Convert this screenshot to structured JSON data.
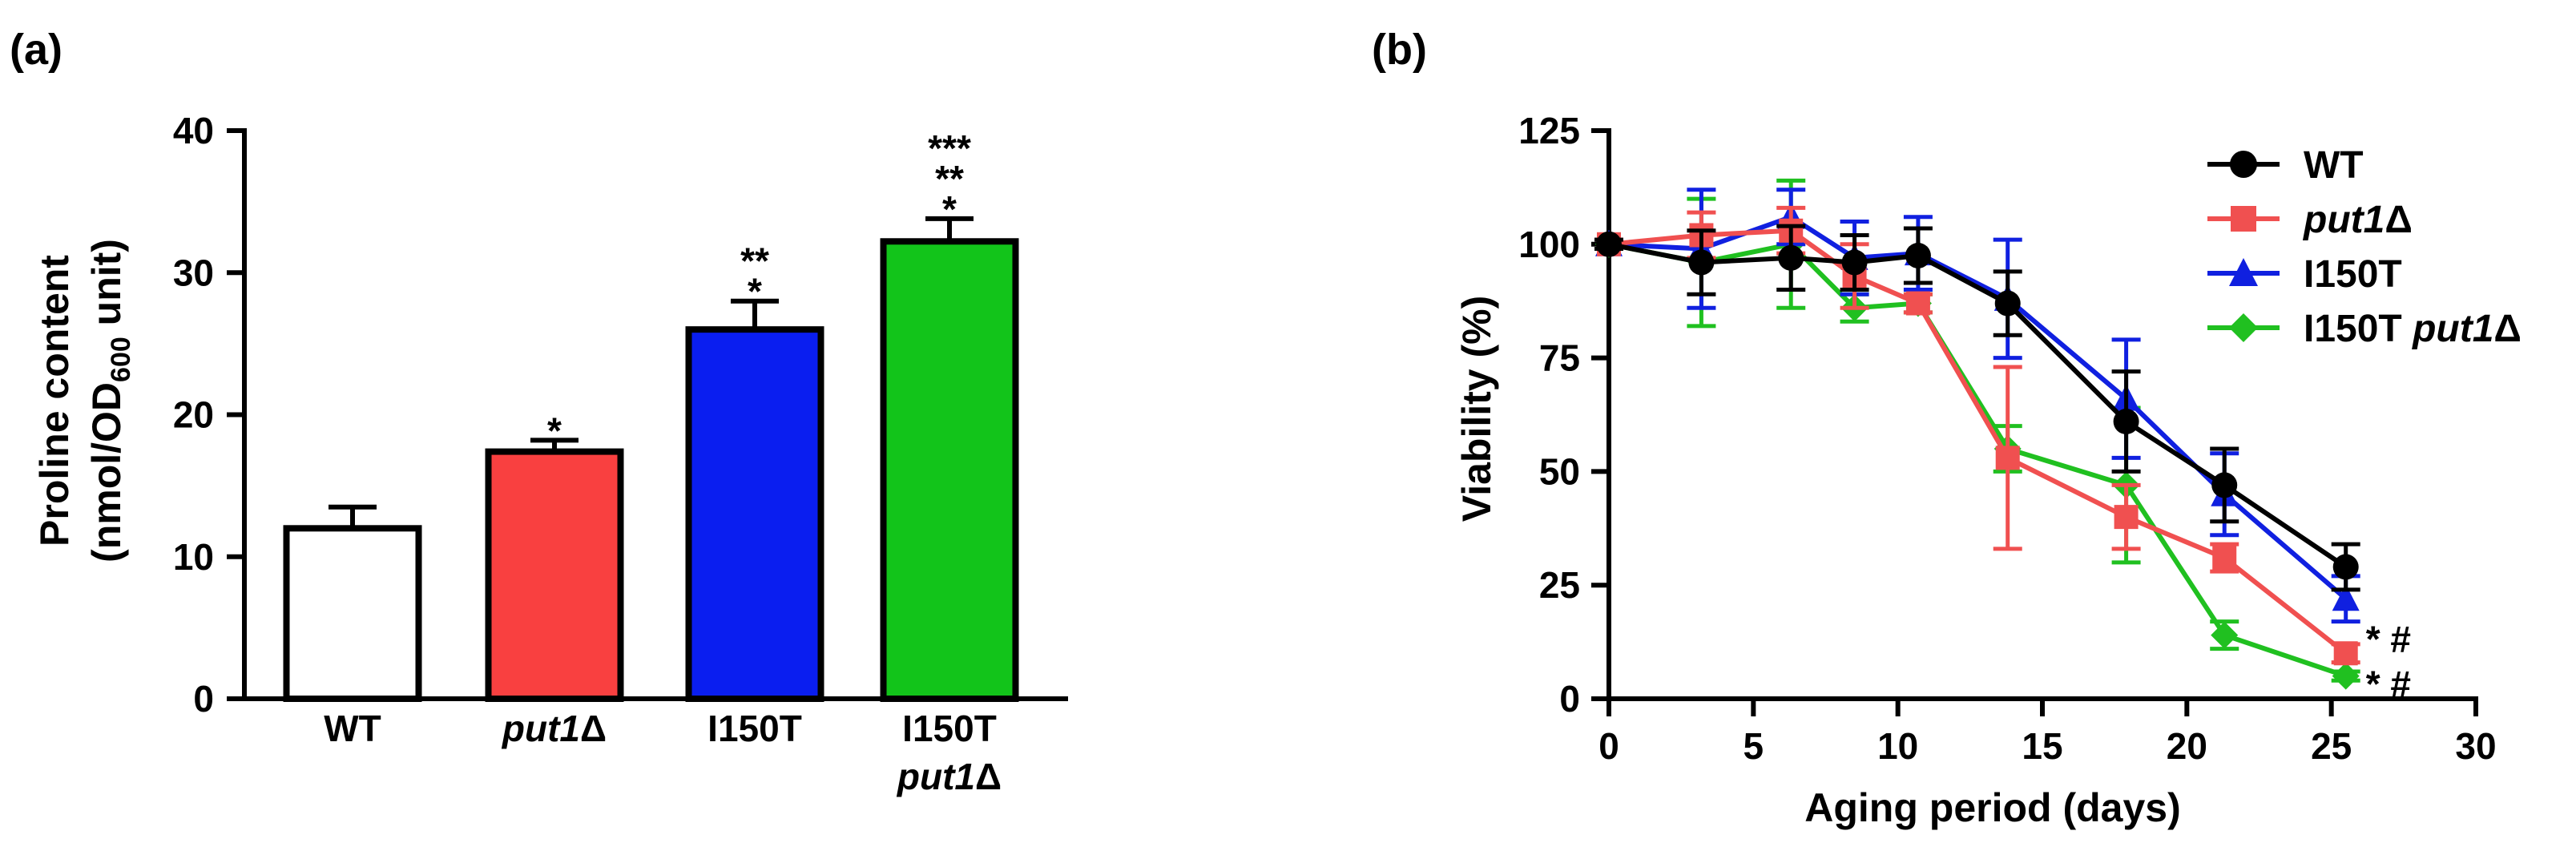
{
  "chart_data": [
    {
      "panel": "(a)",
      "type": "bar",
      "categories": [
        {
          "line1": "WT",
          "line2": ""
        },
        {
          "line1": "put1",
          "line2": "",
          "suffix": "Δ",
          "italic": true
        },
        {
          "line1": "I150T",
          "line2": ""
        },
        {
          "line1": "I150T",
          "line2": "put1",
          "suffix2": "Δ",
          "italic2": true
        }
      ],
      "values": [
        12.0,
        17.4,
        26.0,
        32.2
      ],
      "errors": [
        1.5,
        0.8,
        2.0,
        1.6
      ],
      "colors": [
        "#ffffff",
        "#f94040",
        "#0a1ef0",
        "#12c41a"
      ],
      "significance": [
        [],
        [
          "*"
        ],
        [
          "*",
          "**"
        ],
        [
          "*",
          "**",
          "***"
        ]
      ],
      "ylim": [
        0,
        40
      ],
      "yticks": [
        "0",
        "10",
        "20",
        "30",
        "40"
      ],
      "ytick_values": [
        0,
        10,
        20,
        30,
        40
      ],
      "ylabel_line1": "Proline content",
      "ylabel_line2_pre": "(nmol/OD",
      "ylabel_line2_sub": "600",
      "ylabel_line2_post": " unit)"
    },
    {
      "panel": "(b)",
      "type": "line",
      "xlabel": "Aging period (days)",
      "ylabel": "Viability (%)",
      "xlim": [
        0,
        30
      ],
      "ylim": [
        0,
        125
      ],
      "xticks": [
        "0",
        "5",
        "10",
        "15",
        "20",
        "25",
        "30"
      ],
      "xtick_values": [
        0,
        5,
        10,
        15,
        20,
        25,
        30
      ],
      "yticks": [
        "0",
        "25",
        "50",
        "75",
        "100",
        "125"
      ],
      "ytick_values": [
        0,
        25,
        50,
        75,
        100,
        125
      ],
      "series": [
        {
          "name": "WT",
          "italic_part": "",
          "suffix": "",
          "color": "#000000",
          "marker": "circle",
          "x": [
            0,
            3.2,
            6.3,
            8.5,
            10.7,
            13.8,
            17.9,
            21.3,
            25.5
          ],
          "y": [
            100,
            96,
            97,
            96,
            97.5,
            87,
            61,
            47,
            29
          ],
          "err": [
            1,
            7,
            7,
            6,
            6,
            7,
            11,
            8,
            5
          ]
        },
        {
          "name": "",
          "italic_part": "put1",
          "suffix": "Δ",
          "color": "#f05050",
          "marker": "square",
          "x": [
            0,
            3.2,
            6.3,
            8.5,
            10.7,
            13.8,
            17.9,
            21.3,
            25.5
          ],
          "y": [
            100,
            102,
            103,
            93,
            87,
            53,
            40,
            31,
            10
          ],
          "err": [
            1,
            5,
            5,
            7,
            2,
            20,
            7,
            3,
            2
          ]
        },
        {
          "name": "I150T",
          "italic_part": "",
          "suffix": "",
          "color": "#1020e0",
          "marker": "triangle",
          "x": [
            0,
            3.2,
            6.3,
            8.5,
            10.7,
            13.8,
            17.9,
            21.3,
            25.5
          ],
          "y": [
            100,
            99,
            106,
            97,
            98,
            88,
            66,
            45,
            22
          ],
          "err": [
            1,
            13,
            6,
            8,
            8,
            13,
            13,
            9,
            5
          ]
        },
        {
          "name": "I150T ",
          "italic_part": "put1",
          "suffix": "Δ",
          "color": "#20c020",
          "marker": "diamond",
          "x": [
            0,
            3.2,
            6.3,
            8.5,
            10.7,
            13.8,
            17.9,
            21.3,
            25.5
          ],
          "y": [
            100,
            96,
            100,
            86,
            87,
            55,
            47,
            14,
            5
          ],
          "err": [
            1,
            14,
            14,
            3,
            2,
            5,
            17,
            3,
            1
          ]
        }
      ],
      "annotations": [
        "* #",
        "* #"
      ]
    }
  ]
}
